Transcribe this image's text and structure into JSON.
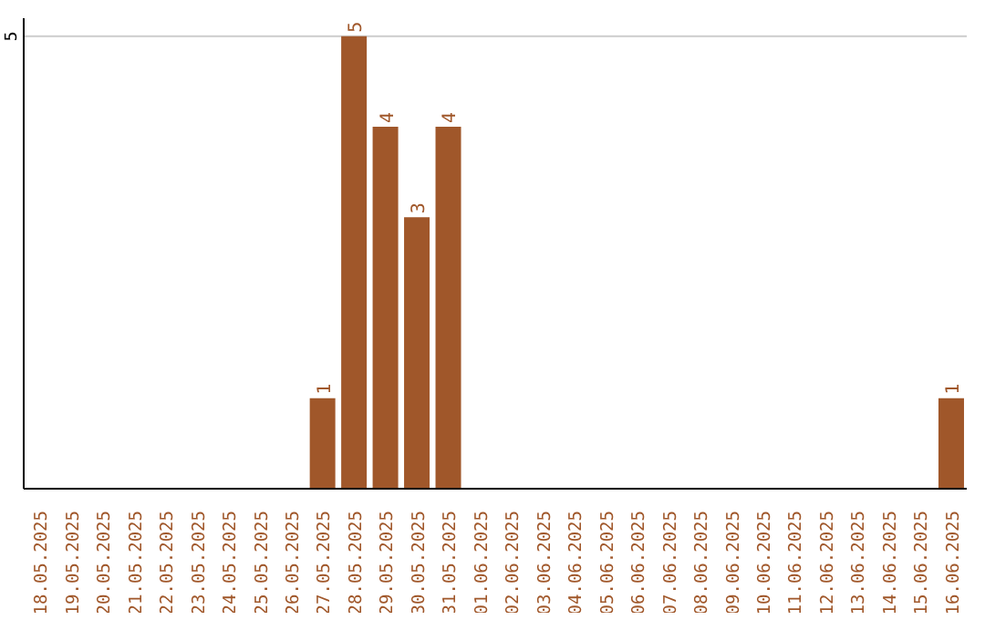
{
  "chart_data": {
    "type": "bar",
    "categories": [
      "18.05.2025",
      "19.05.2025",
      "20.05.2025",
      "21.05.2025",
      "22.05.2025",
      "23.05.2025",
      "24.05.2025",
      "25.05.2025",
      "26.05.2025",
      "27.05.2025",
      "28.05.2025",
      "29.05.2025",
      "30.05.2025",
      "31.05.2025",
      "01.06.2025",
      "02.06.2025",
      "03.06.2025",
      "04.06.2025",
      "05.06.2025",
      "06.06.2025",
      "07.06.2025",
      "08.06.2025",
      "09.06.2025",
      "10.06.2025",
      "11.06.2025",
      "12.06.2025",
      "13.06.2025",
      "14.06.2025",
      "15.06.2025",
      "16.06.2025"
    ],
    "values": [
      0,
      0,
      0,
      0,
      0,
      0,
      0,
      0,
      0,
      1,
      5,
      4,
      3,
      4,
      0,
      0,
      0,
      0,
      0,
      0,
      0,
      0,
      0,
      0,
      0,
      0,
      0,
      0,
      0,
      1
    ],
    "value_labels": [
      null,
      null,
      null,
      null,
      null,
      null,
      null,
      null,
      null,
      "1",
      "5",
      "4",
      "3",
      "4",
      null,
      null,
      null,
      null,
      null,
      null,
      null,
      null,
      null,
      null,
      null,
      null,
      null,
      null,
      null,
      "1"
    ],
    "color": "#a0572a",
    "ylim": [
      0,
      5.2
    ],
    "yticks": [
      5
    ],
    "grid": "y"
  }
}
